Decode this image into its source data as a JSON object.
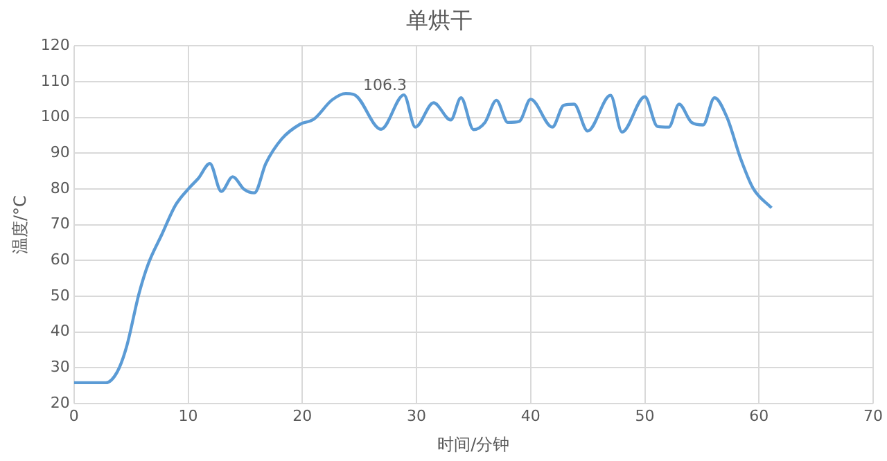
{
  "chart_data": {
    "type": "line",
    "title": "单烘干",
    "xlabel": "时间/分钟",
    "ylabel": "温度/°C",
    "x": [
      0,
      2.8,
      3.8,
      4.6,
      5.7,
      6.5,
      7.7,
      8.9,
      10.1,
      10.9,
      11.9,
      12.9,
      13.9,
      14.9,
      15.8,
      16.8,
      18.2,
      19.8,
      21,
      22.6,
      23.8,
      24.6,
      26.9,
      28.9,
      29.9,
      31.5,
      33,
      33.9,
      35,
      36,
      37,
      38,
      39,
      40,
      41.9,
      42.9,
      43.8,
      45,
      47,
      48,
      50,
      51.1,
      52.1,
      53,
      54.1,
      55.1,
      56.1,
      57.2,
      58.4,
      59.5,
      61.1
    ],
    "series": [
      {
        "color": "#5b9bd5",
        "values": [
          25.8,
          25.8,
          28.9,
          35.8,
          50.8,
          59,
          67.3,
          75.5,
          80.3,
          83,
          87.1,
          79.3,
          83.4,
          79.9,
          78.9,
          87.1,
          94,
          98.1,
          99.5,
          104.9,
          106.7,
          106.3,
          96.7,
          106.3,
          97.3,
          104.1,
          99.3,
          105.5,
          96.6,
          98.6,
          104.8,
          98.6,
          98.9,
          105.1,
          97.3,
          103.4,
          103.7,
          96.2,
          106.2,
          95.9,
          105.8,
          97.5,
          97.3,
          103.7,
          98.6,
          97.9,
          105.5,
          100,
          88.4,
          80.1,
          74.7
        ]
      }
    ],
    "annotations": [
      {
        "text": "106.3",
        "x": 28.9,
        "y": 106.3
      }
    ],
    "xlim": [
      0,
      70
    ],
    "xticks": [
      0,
      10,
      20,
      30,
      40,
      50,
      60,
      70
    ],
    "ylim": [
      20,
      120
    ],
    "yticks": [
      20,
      30,
      40,
      50,
      60,
      70,
      80,
      90,
      100,
      110,
      120
    ],
    "grid": true,
    "marker": "none",
    "line_style": "solid",
    "legend": false
  }
}
